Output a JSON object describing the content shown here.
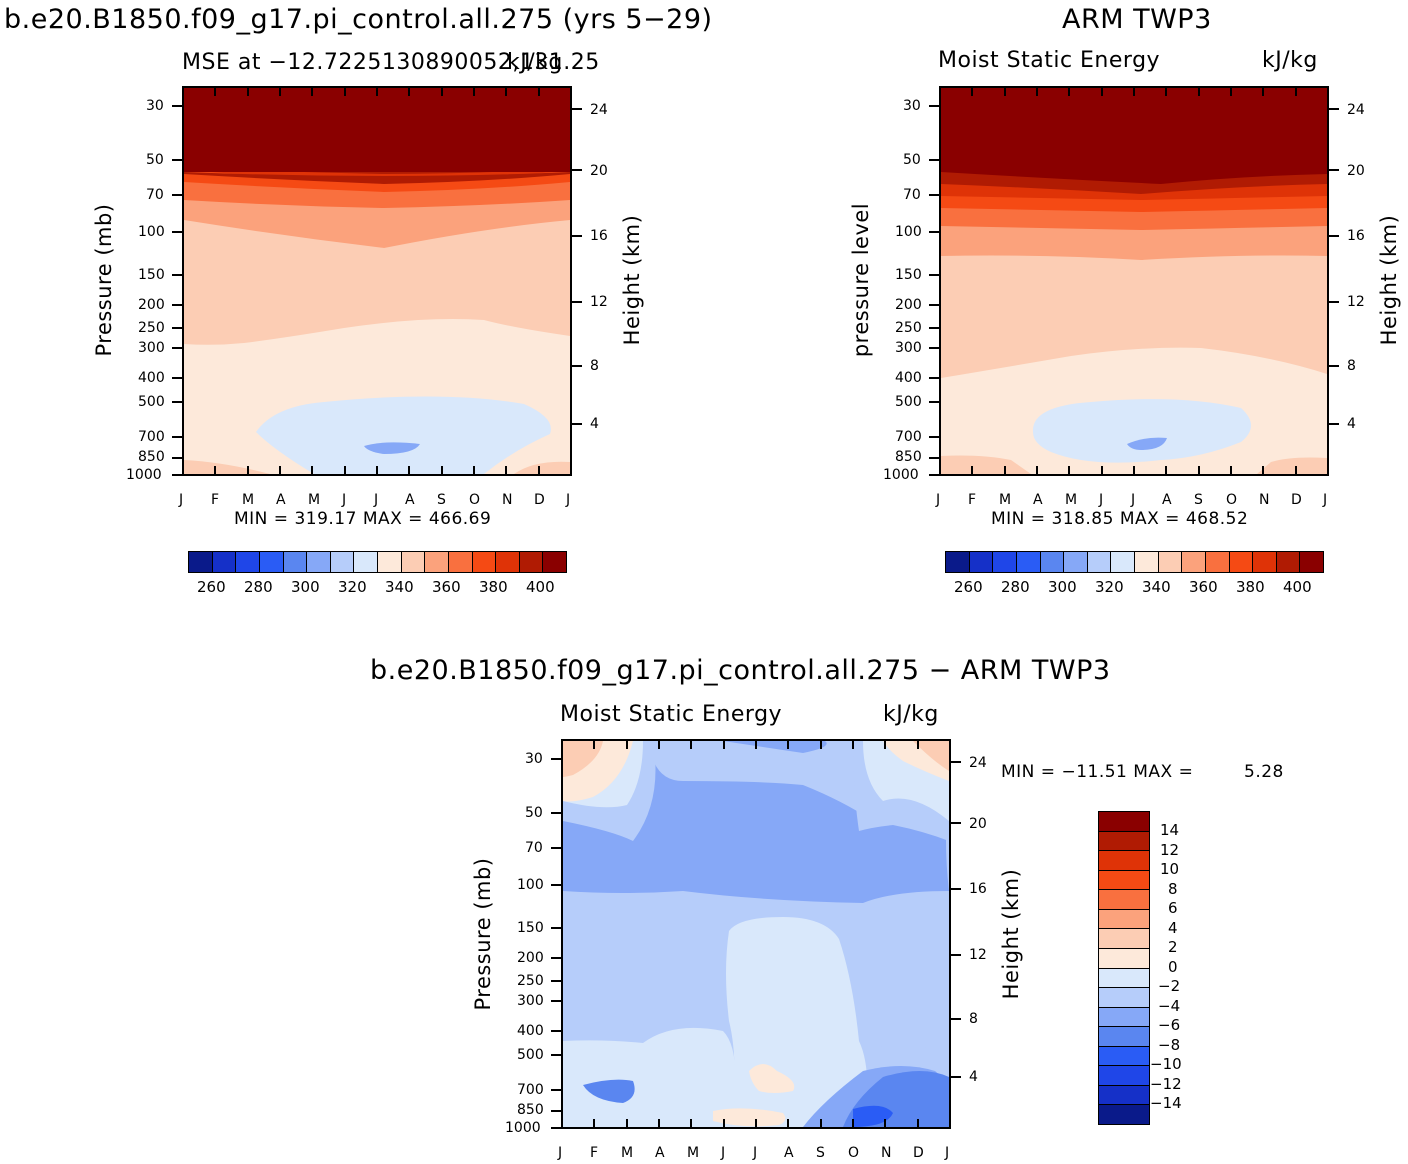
{
  "chart_data": [
    {
      "type": "heatmap",
      "title": "b.e20.B1850.f09_g17.pi_control.all.275 (yrs 5−29)",
      "subtitle_left": "MSE at −12.7225130890052,131.25",
      "subtitle_right": "kJ/kg",
      "ylabel": "Pressure (mb)",
      "ylabel_right": "Height (km)",
      "x": [
        "J",
        "F",
        "M",
        "A",
        "M",
        "J",
        "J",
        "A",
        "S",
        "O",
        "N",
        "D",
        "J"
      ],
      "y_ticks": [
        "30",
        "50",
        "70",
        "100",
        "150",
        "200",
        "250",
        "300",
        "400",
        "500",
        "700",
        "850",
        "1000"
      ],
      "y_right_ticks": [
        "24",
        "20",
        "16",
        "12",
        "8",
        "4"
      ],
      "minmax": "MIN = 319.17 MAX = 466.69",
      "levels": [
        260,
        270,
        280,
        290,
        300,
        310,
        320,
        330,
        340,
        350,
        360,
        370,
        380,
        390,
        400
      ],
      "colorbar_labels": [
        "260",
        "280",
        "300",
        "320",
        "340",
        "360",
        "380",
        "400"
      ]
    },
    {
      "type": "heatmap",
      "title": "ARM TWP3",
      "subtitle_left": "Moist Static Energy",
      "subtitle_right": "kJ/kg",
      "ylabel": "pressure level",
      "ylabel_right": "Height (km)",
      "x": [
        "J",
        "F",
        "M",
        "A",
        "M",
        "J",
        "J",
        "A",
        "S",
        "O",
        "N",
        "D",
        "J"
      ],
      "y_ticks": [
        "30",
        "50",
        "70",
        "100",
        "150",
        "200",
        "250",
        "300",
        "400",
        "500",
        "700",
        "850",
        "1000"
      ],
      "y_right_ticks": [
        "24",
        "20",
        "16",
        "12",
        "8",
        "4"
      ],
      "minmax": "MIN = 318.85 MAX = 468.52",
      "levels": [
        260,
        270,
        280,
        290,
        300,
        310,
        320,
        330,
        340,
        350,
        360,
        370,
        380,
        390,
        400
      ],
      "colorbar_labels": [
        "260",
        "280",
        "300",
        "320",
        "340",
        "360",
        "380",
        "400"
      ]
    },
    {
      "type": "heatmap",
      "title": "b.e20.B1850.f09_g17.pi_control.all.275 − ARM TWP3",
      "subtitle_left": "Moist Static Energy",
      "subtitle_right": "kJ/kg",
      "ylabel": "Pressure (mb)",
      "ylabel_right": "Height (km)",
      "x": [
        "J",
        "F",
        "M",
        "A",
        "M",
        "J",
        "J",
        "A",
        "S",
        "O",
        "N",
        "D",
        "J"
      ],
      "y_ticks": [
        "30",
        "50",
        "70",
        "100",
        "150",
        "200",
        "250",
        "300",
        "400",
        "500",
        "700",
        "850",
        "1000"
      ],
      "y_right_ticks": [
        "24",
        "20",
        "16",
        "12",
        "8",
        "4"
      ],
      "minmax_label": "MIN = −11.51 MAX =",
      "minmax_value": "5.28",
      "levels": [
        -14,
        -12,
        -10,
        -8,
        -6,
        -4,
        -2,
        0,
        2,
        4,
        6,
        8,
        10,
        12,
        14
      ],
      "colorbar_labels": [
        "14",
        "12",
        "10",
        "8",
        "6",
        "4",
        "2",
        "0",
        "−2",
        "−4",
        "−6",
        "−8",
        "−10",
        "−12",
        "−14"
      ]
    }
  ],
  "colors": {
    "abs_scale": [
      "#0a1a8a",
      "#1530c8",
      "#1f46e8",
      "#2a5cf5",
      "#5a86f0",
      "#86a8f7",
      "#b6cdfa",
      "#d9e8fb",
      "#fde9da",
      "#fccdb4",
      "#fba27c",
      "#f9703f",
      "#f54a14",
      "#df3307",
      "#b01b03",
      "#8a0000"
    ],
    "diff_scale": [
      "#8a0000",
      "#b01b03",
      "#df3307",
      "#f54a14",
      "#f9703f",
      "#fba27c",
      "#fccdb4",
      "#fde9da",
      "#d9e8fb",
      "#b6cdfa",
      "#86a8f7",
      "#5a86f0",
      "#2a5cf5",
      "#1f46e8",
      "#1530c8",
      "#0a1a8a"
    ]
  }
}
